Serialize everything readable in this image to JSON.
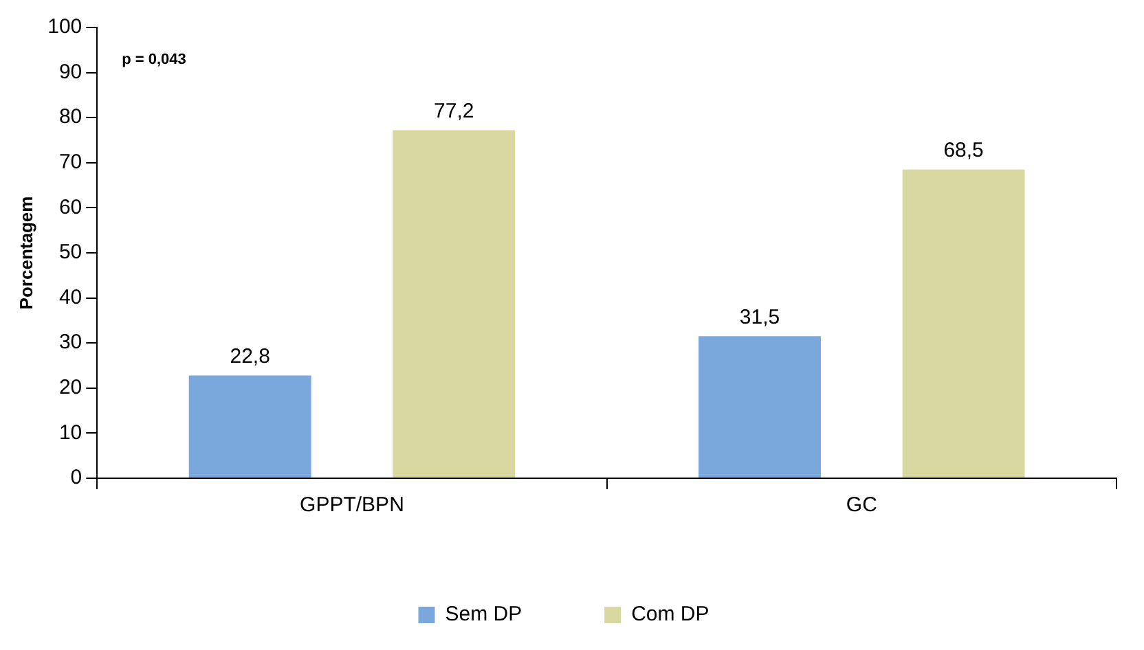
{
  "chart_data": {
    "type": "bar",
    "ylabel": "Porcentagem",
    "categories": [
      "GPPT/BPN",
      "GC"
    ],
    "series": [
      {
        "name": "Sem DP",
        "color": "#7aa8dc",
        "values": [
          22.8,
          31.5
        ],
        "value_labels": [
          "22,8",
          "31,5"
        ]
      },
      {
        "name": "Com DP",
        "color": "#d8d8a0",
        "values": [
          77.2,
          68.5
        ],
        "value_labels": [
          "77,2",
          "68,5"
        ]
      }
    ],
    "annotations": [
      "p = 0,043"
    ],
    "ylim": [
      0,
      100
    ],
    "yticks": [
      0,
      10,
      20,
      30,
      40,
      50,
      60,
      70,
      80,
      90,
      100
    ],
    "grid": false,
    "legend": "bottom"
  }
}
